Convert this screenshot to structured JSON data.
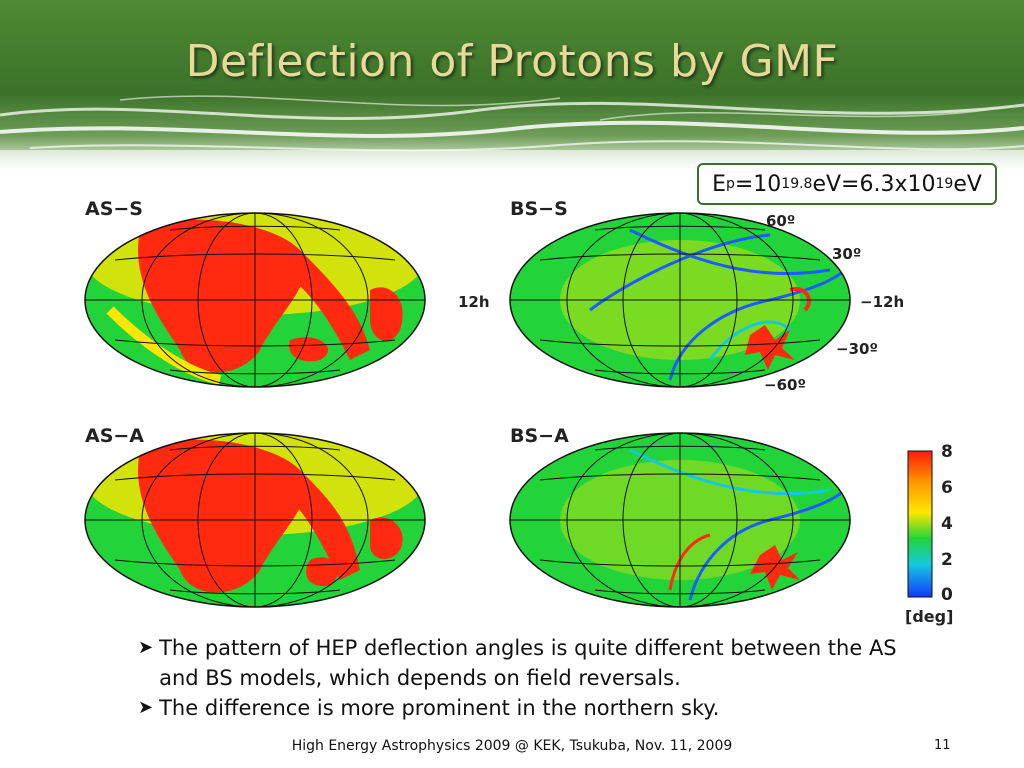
{
  "slide": {
    "title": "Deflection of Protons by GMF",
    "energy": {
      "e": "E",
      "sub": "p",
      "eq1": "=10",
      "exp1": "19.8",
      "mid": "eV=6.3x10",
      "exp2": "19",
      "end": "eV"
    },
    "maps": {
      "as_s": "AS−S",
      "bs_s": "BS−S",
      "as_a": "AS−A",
      "bs_a": "BS−A"
    },
    "axis_labels": {
      "left_12h": "12h",
      "right_12h": "−12h",
      "lat60": "60º",
      "lat30": "30º",
      "latm30": "−30º",
      "latm60": "−60º"
    },
    "colorbar": {
      "ticks": [
        "8",
        "6",
        "4",
        "2",
        "0"
      ],
      "unit": "[deg]"
    },
    "bullets": [
      "The pattern of HEP deflection angles is quite different between the AS and BS models, which depends on field reversals.",
      "The difference is more prominent in the northern sky."
    ],
    "footer": "High Energy Astrophysics 2009 @ KEK, Tsukuba, Nov. 11, 2009",
    "page_number": "11"
  },
  "colors": {
    "title": "#e8d89a",
    "header_green": "#3f7a2c",
    "box_border": "#3c6e2e",
    "heat_red": "#ff2a10",
    "heat_green": "#22d43a",
    "heat_blue": "#1e5cff"
  }
}
